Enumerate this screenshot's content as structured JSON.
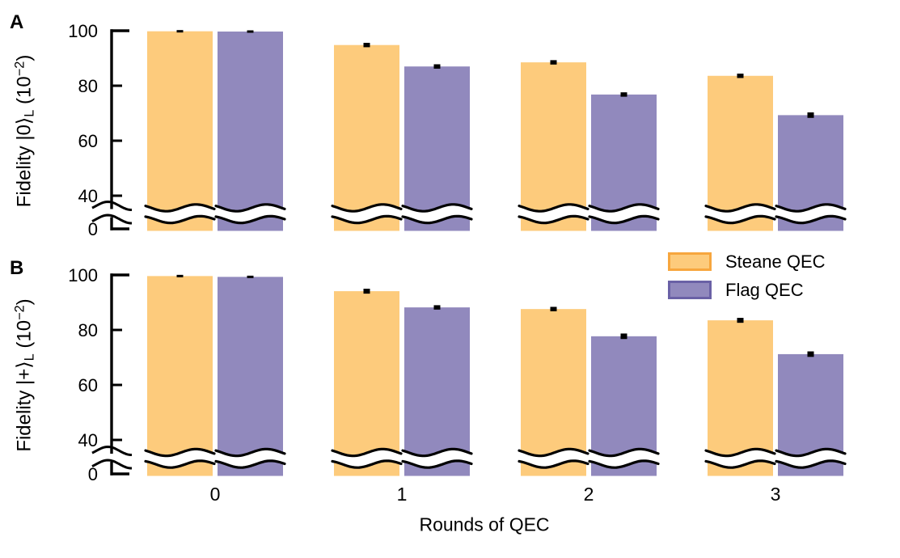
{
  "figure": {
    "panel_a_label": "A",
    "panel_b_label": "B",
    "xlabel": "Rounds of QEC",
    "legend": {
      "items": [
        {
          "label": "Steane QEC",
          "fill": "#FDCB7C",
          "edge": "#F7A63E"
        },
        {
          "label": "Flag QEC",
          "fill": "#9189BD",
          "edge": "#6A61A6"
        }
      ]
    }
  },
  "colors": {
    "steane_fill": "#FDCB7C",
    "flag_fill": "#9189BD",
    "axis": "#000000",
    "errorbar": "#000000",
    "background": "#FFFFFF"
  },
  "chart_data": [
    {
      "type": "bar",
      "panel": "A",
      "ylabel": "Fidelity |0⟩_L (10⁻²)",
      "ylabel_parts": {
        "main": "Fidelity |0⟩",
        "sub": "L",
        "mid": " (10",
        "sup": "−2",
        "end": ")"
      },
      "xlabel": "Rounds of QEC",
      "categories": [
        "0",
        "1",
        "2",
        "3"
      ],
      "yticks": [
        0,
        40,
        60,
        80,
        100
      ],
      "ylim": [
        0,
        100
      ],
      "axis_break": {
        "between": [
          0,
          40
        ],
        "style": "wavy"
      },
      "grid": false,
      "legend_position": "right-center-of-figure",
      "series": [
        {
          "name": "Steane QEC",
          "color": "#FDCB7C",
          "values": [
            99.8,
            94.8,
            88.5,
            83.6
          ],
          "errors": [
            0.3,
            0.8,
            0.8,
            0.8
          ]
        },
        {
          "name": "Flag QEC",
          "color": "#9189BD",
          "values": [
            99.7,
            87.0,
            76.8,
            69.3
          ],
          "errors": [
            0.3,
            0.8,
            0.8,
            1.0
          ]
        }
      ]
    },
    {
      "type": "bar",
      "panel": "B",
      "ylabel": "Fidelity |+⟩_L (10⁻²)",
      "ylabel_parts": {
        "main": "Fidelity |+⟩",
        "sub": "L",
        "mid": " (10",
        "sup": "−2",
        "end": ")"
      },
      "xlabel": "Rounds of QEC",
      "categories": [
        "0",
        "1",
        "2",
        "3"
      ],
      "yticks": [
        0,
        40,
        60,
        80,
        100
      ],
      "ylim": [
        0,
        100
      ],
      "axis_break": {
        "between": [
          0,
          40
        ],
        "style": "wavy"
      },
      "grid": false,
      "legend_position": "right-center-of-figure",
      "series": [
        {
          "name": "Steane QEC",
          "color": "#FDCB7C",
          "values": [
            99.6,
            94.1,
            87.6,
            83.5
          ],
          "errors": [
            0.3,
            0.9,
            0.8,
            0.9
          ]
        },
        {
          "name": "Flag QEC",
          "color": "#9189BD",
          "values": [
            99.3,
            88.2,
            77.7,
            71.2
          ],
          "errors": [
            0.3,
            0.8,
            1.0,
            1.0
          ]
        }
      ]
    }
  ]
}
